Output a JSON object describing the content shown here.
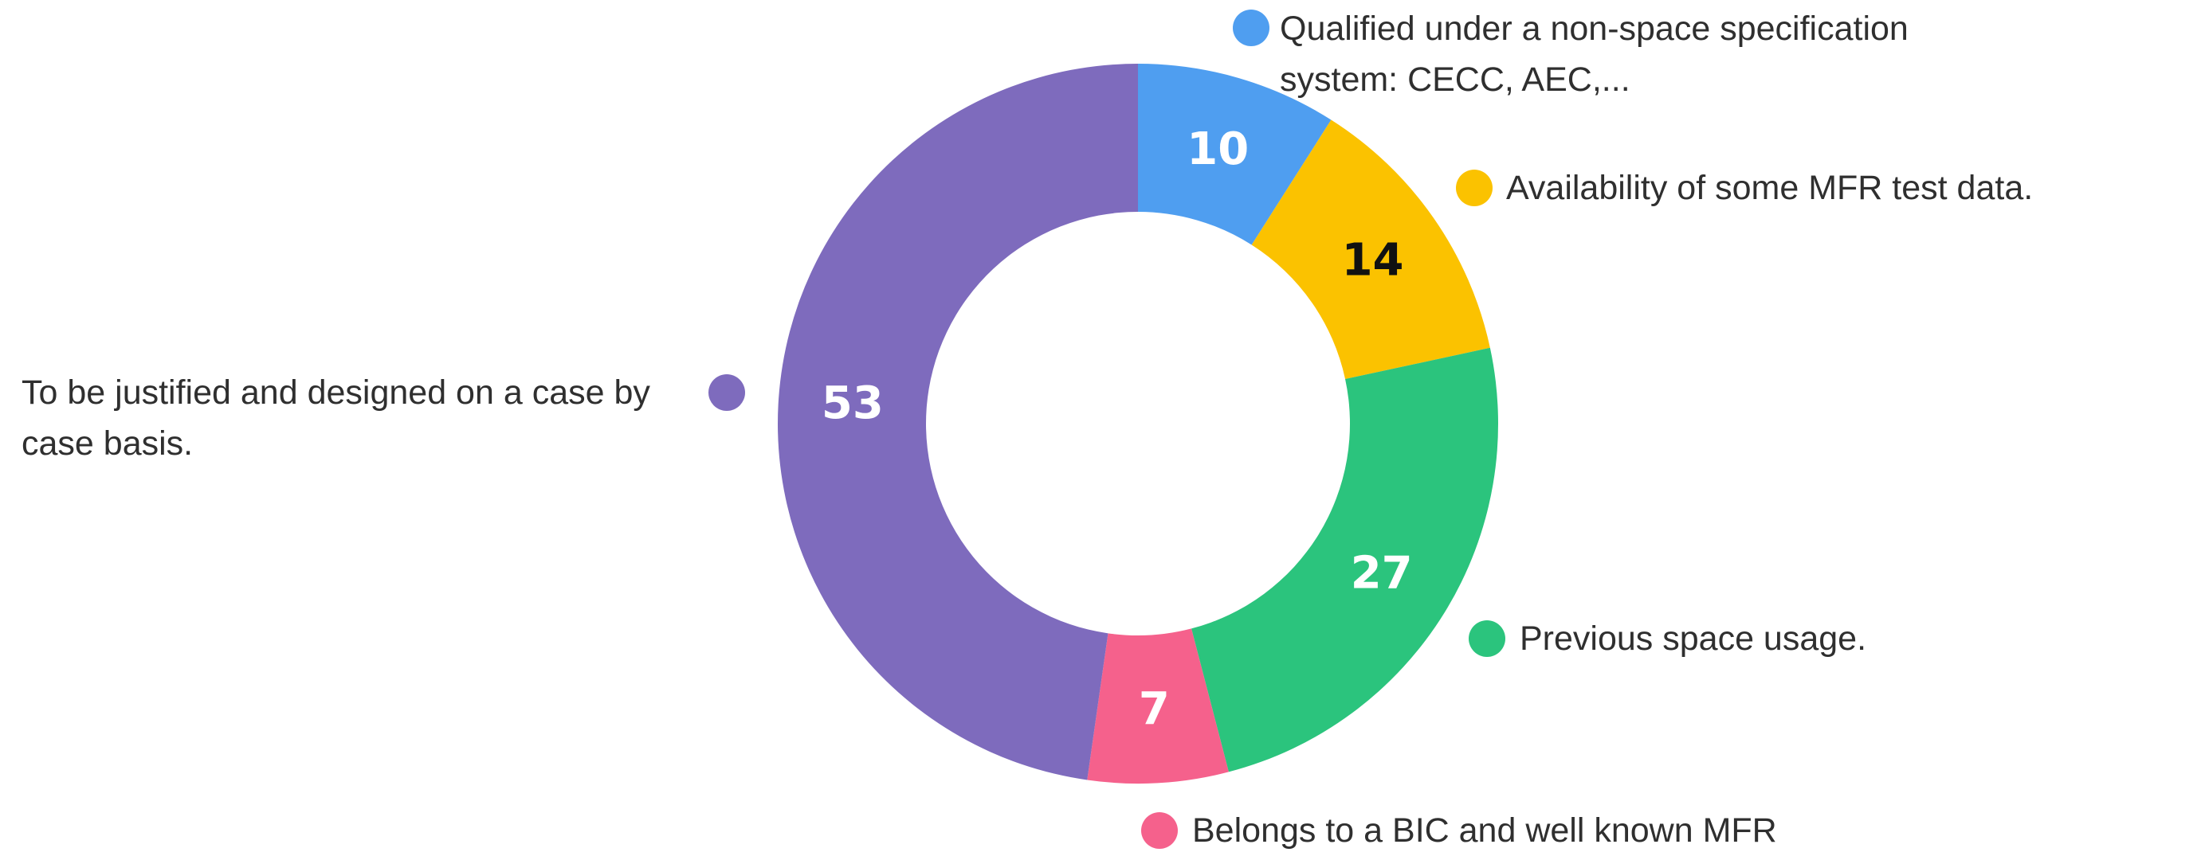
{
  "chart_data": {
    "type": "pie",
    "categories": [
      "Qualified under a non-space specification system: CECC, AEC,...",
      "Availability of some MFR test data.",
      "Previous space usage.",
      "Belongs to a BIC and well known MFR",
      "To be justified and designed on a case by case basis."
    ],
    "values": [
      10,
      14,
      27,
      7,
      53
    ],
    "colors": [
      "#4f9ef0",
      "#fbc200",
      "#2bc47d",
      "#f5618c",
      "#7e6bbd"
    ],
    "value_label_colors": [
      "#ffffff",
      "#111111",
      "#ffffff",
      "#ffffff",
      "#ffffff"
    ],
    "donut": true
  }
}
